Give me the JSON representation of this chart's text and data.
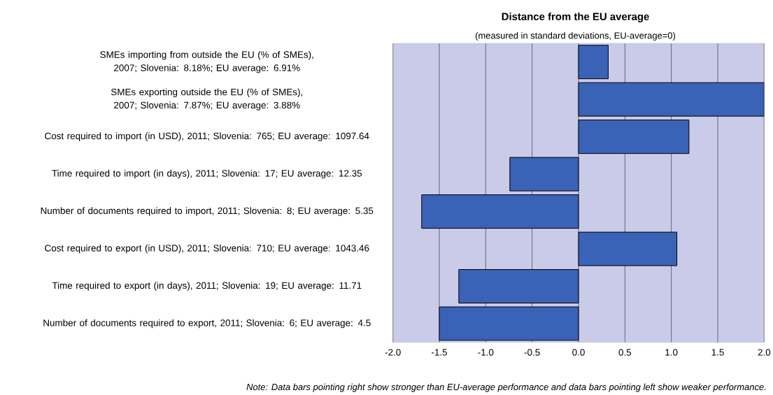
{
  "chart_data": {
    "type": "bar",
    "orientation": "horizontal",
    "title": "Distance from the EU average",
    "subtitle": "(measured in standard deviations, EU-average=0)",
    "categories": [
      "SMEs importing from outside the EU (% of SMEs), 2007; Slovenia: 8.18%; EU average: 6.91%",
      "SMEs exporting outside the EU (% of SMEs), 2007; Slovenia: 7.87%; EU average: 3.88%",
      "Cost required to import (in USD), 2011; Slovenia: 765; EU average: 1097.64",
      "Time required to import (in days), 2011; Slovenia: 17; EU average: 12.35",
      "Number of documents required to import, 2011; Slovenia: 8; EU average: 5.35",
      "Cost required to export (in USD), 2011; Slovenia: 710; EU average: 1043.46",
      "Time required to export (in days), 2011; Slovenia: 19; EU average: 11.71",
      "Number of documents required to export, 2011; Slovenia: 6; EU average: 4.5"
    ],
    "values": [
      0.32,
      2.0,
      1.19,
      -0.74,
      -1.69,
      1.06,
      -1.29,
      -1.5
    ],
    "color": "#3a62b6",
    "xlim": [
      -2.0,
      2.0
    ],
    "xticks": [
      {
        "value": -2.0,
        "label": "-2.0"
      },
      {
        "value": -1.5,
        "label": "-1.5"
      },
      {
        "value": -1.0,
        "label": "-1.0"
      },
      {
        "value": -0.5,
        "label": "-0.5"
      },
      {
        "value": 0.0,
        "label": "0.0"
      },
      {
        "value": 0.5,
        "label": "0.5"
      },
      {
        "value": 1.0,
        "label": "1.0"
      },
      {
        "value": 1.5,
        "label": "1.5"
      },
      {
        "value": 2.0,
        "label": "2.0"
      }
    ],
    "grid": "x",
    "annotations": [
      "Note: Data bars pointing right show stronger than EU-average performance and data bars pointing left show weaker performance."
    ]
  }
}
